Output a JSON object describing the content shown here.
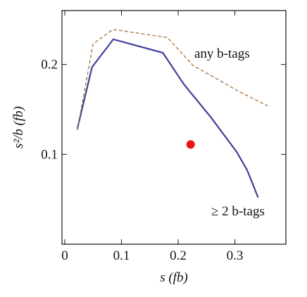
{
  "chart_data": {
    "type": "line",
    "x_label": "s (fb)",
    "y_label": "s²/b (fb)",
    "xlim": [
      -0.005,
      0.39
    ],
    "ylim": [
      0,
      0.26
    ],
    "xticks": [
      0,
      0.1,
      0.2,
      0.3
    ],
    "yticks": [
      0.1,
      0.2
    ],
    "series": [
      {
        "name": "≥ 2 b-tags",
        "color": "#3f3f9a",
        "style": "solid",
        "x": [
          0.022,
          0.048,
          0.0855,
          0.173,
          0.21,
          0.258,
          0.304,
          0.322,
          0.341
        ],
        "values": [
          0.128,
          0.197,
          0.228,
          0.213,
          0.178,
          0.141,
          0.102,
          0.082,
          0.052
        ]
      },
      {
        "name": "any b-tags",
        "color": "#b07a4a",
        "style": "dashed",
        "x": [
          0.022,
          0.05,
          0.085,
          0.181,
          0.226,
          0.307,
          0.358
        ],
        "values": [
          0.127,
          0.223,
          0.239,
          0.23,
          0.199,
          0.17,
          0.154
        ]
      },
      {
        "color": "#ee1111",
        "style": "marker",
        "x": [
          0.222
        ],
        "values": [
          0.111
        ]
      }
    ]
  }
}
